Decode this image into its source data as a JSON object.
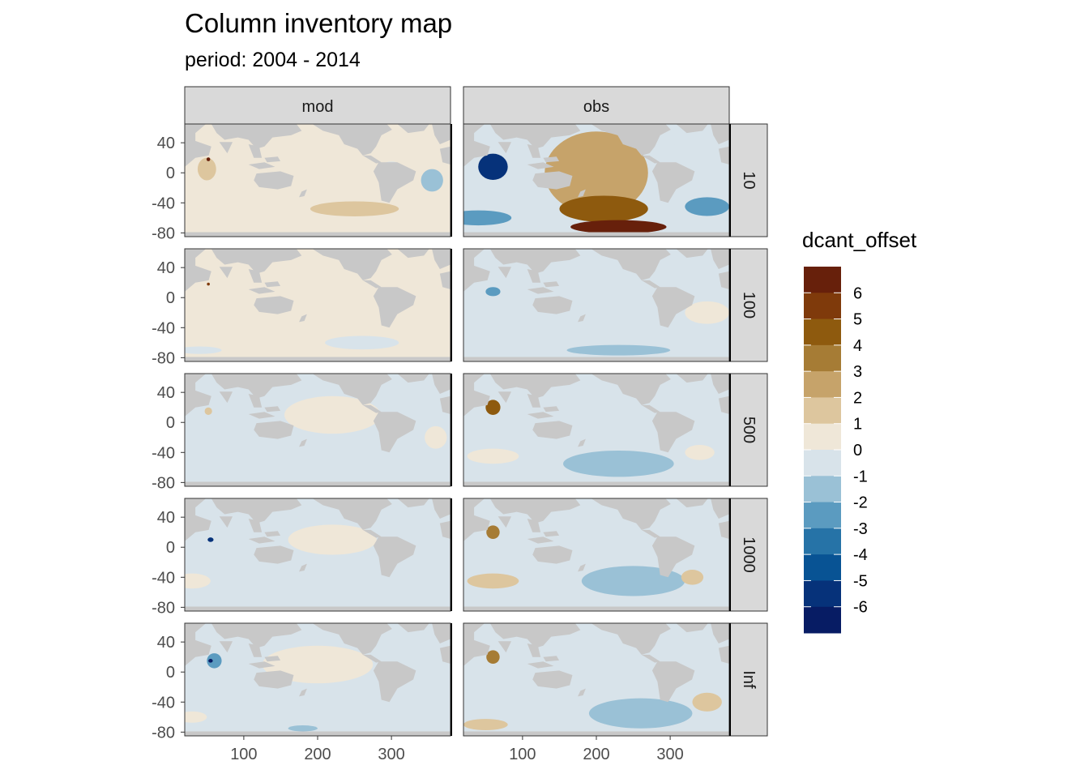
{
  "title": "Column inventory map",
  "subtitle": "period: 2004 - 2014",
  "chart_data": {
    "type": "heatmap",
    "facet_columns": [
      "mod",
      "obs"
    ],
    "facet_rows": [
      "10",
      "100",
      "500",
      "1000",
      "Inf"
    ],
    "x_ticks": [
      "100",
      "200",
      "300"
    ],
    "x_tick_values": [
      100,
      200,
      300
    ],
    "xlim": [
      20,
      380
    ],
    "y_ticks": [
      "40",
      "0",
      "-40",
      "-80"
    ],
    "y_tick_values": [
      40,
      0,
      -40,
      -80
    ],
    "ylim": [
      -85,
      65
    ],
    "legend": {
      "title": "dcant_offset",
      "labels": [
        "6",
        "5",
        "4",
        "3",
        "2",
        "1",
        "0",
        "-1",
        "-2",
        "-3",
        "-4",
        "-5",
        "-6"
      ],
      "colors": [
        "#67200b",
        "#7f3a0b",
        "#8e5a0e",
        "#a67c35",
        "#c6a36a",
        "#ddc69e",
        "#efe7d8",
        "#d8e3ea",
        "#9ac1d6",
        "#5b9bc0",
        "#2673a7",
        "#085394",
        "#06327a",
        "#071c64"
      ]
    },
    "colors": {
      "land": "#c8c8c8",
      "panel_border": "#333333",
      "strip_fill": "#d9d9d9"
    },
    "panels": {
      "mod": {
        "10": {
          "base": 0.3,
          "patches": [
            {
              "lon": 250,
              "lat": -48,
              "w": 120,
              "h": 20,
              "v": 1.4
            },
            {
              "lon": 50,
              "lat": 5,
              "w": 25,
              "h": 30,
              "v": 1.6
            },
            {
              "lon": 355,
              "lat": -10,
              "w": 30,
              "h": 30,
              "v": -1.6
            },
            {
              "lon": 300,
              "lat": 0,
              "w": 40,
              "h": 30,
              "v": -0.4
            },
            {
              "lon": 30,
              "lat": -60,
              "w": 60,
              "h": 15,
              "v": 0.9
            },
            {
              "lon": 52,
              "lat": 18,
              "w": 5,
              "h": 5,
              "v": 6.5
            }
          ]
        },
        "100": {
          "base": 0.4,
          "patches": [
            {
              "lon": 260,
              "lat": -60,
              "w": 100,
              "h": 18,
              "v": -0.5
            },
            {
              "lon": 40,
              "lat": -70,
              "w": 60,
              "h": 10,
              "v": -0.5
            },
            {
              "lon": 52,
              "lat": 18,
              "w": 4,
              "h": 4,
              "v": 5.5
            }
          ]
        },
        "500": {
          "base": -0.4,
          "patches": [
            {
              "lon": 220,
              "lat": 10,
              "w": 130,
              "h": 50,
              "v": 0.5
            },
            {
              "lon": 360,
              "lat": -20,
              "w": 30,
              "h": 30,
              "v": 0.5
            },
            {
              "lon": 52,
              "lat": 15,
              "w": 10,
              "h": 10,
              "v": 1.5
            }
          ]
        },
        "1000": {
          "base": -0.4,
          "patches": [
            {
              "lon": 220,
              "lat": 10,
              "w": 120,
              "h": 40,
              "v": 0.5
            },
            {
              "lon": 30,
              "lat": -45,
              "w": 50,
              "h": 20,
              "v": 0.5
            },
            {
              "lon": 55,
              "lat": 10,
              "w": 8,
              "h": 6,
              "v": -5.5
            },
            {
              "lon": 100,
              "lat": 0,
              "w": 30,
              "h": 30,
              "v": -0.6
            }
          ]
        },
        "Inf": {
          "base": -0.4,
          "patches": [
            {
              "lon": 200,
              "lat": 10,
              "w": 150,
              "h": 50,
              "v": 0.5
            },
            {
              "lon": 60,
              "lat": 15,
              "w": 20,
              "h": 20,
              "v": -2.5
            },
            {
              "lon": 55,
              "lat": 15,
              "w": 6,
              "h": 5,
              "v": -6.5
            },
            {
              "lon": 180,
              "lat": -75,
              "w": 40,
              "h": 8,
              "v": -1.5
            },
            {
              "lon": 30,
              "lat": -60,
              "w": 40,
              "h": 15,
              "v": 0.5
            }
          ]
        }
      },
      "obs": {
        "10": {
          "base": -0.4,
          "patches": [
            {
              "lon": 200,
              "lat": 0,
              "w": 140,
              "h": 110,
              "v": 2.2
            },
            {
              "lon": 210,
              "lat": -48,
              "w": 120,
              "h": 35,
              "v": 4.2
            },
            {
              "lon": 230,
              "lat": -72,
              "w": 130,
              "h": 18,
              "v": 6.2
            },
            {
              "lon": 60,
              "lat": 8,
              "w": 40,
              "h": 35,
              "v": -5.5
            },
            {
              "lon": 350,
              "lat": -45,
              "w": 60,
              "h": 25,
              "v": -2.8
            },
            {
              "lon": 40,
              "lat": -60,
              "w": 90,
              "h": 20,
              "v": -2.2
            },
            {
              "lon": 330,
              "lat": 30,
              "w": 60,
              "h": 25,
              "v": -0.8
            }
          ]
        },
        "100": {
          "base": -0.4,
          "patches": [
            {
              "lon": 230,
              "lat": -70,
              "w": 140,
              "h": 14,
              "v": -1.5
            },
            {
              "lon": 350,
              "lat": -20,
              "w": 60,
              "h": 30,
              "v": 0.5
            },
            {
              "lon": 60,
              "lat": 8,
              "w": 20,
              "h": 12,
              "v": -2.8
            }
          ]
        },
        "500": {
          "base": -0.4,
          "patches": [
            {
              "lon": 230,
              "lat": -55,
              "w": 150,
              "h": 35,
              "v": -1.4
            },
            {
              "lon": 60,
              "lat": 20,
              "w": 20,
              "h": 20,
              "v": 4.5
            },
            {
              "lon": 340,
              "lat": -40,
              "w": 40,
              "h": 20,
              "v": 0.8
            },
            {
              "lon": 60,
              "lat": -45,
              "w": 70,
              "h": 20,
              "v": 0.5
            }
          ]
        },
        "1000": {
          "base": -0.4,
          "patches": [
            {
              "lon": 250,
              "lat": -45,
              "w": 140,
              "h": 40,
              "v": -1.4
            },
            {
              "lon": 60,
              "lat": 20,
              "w": 18,
              "h": 18,
              "v": 4.0
            },
            {
              "lon": 330,
              "lat": -40,
              "w": 30,
              "h": 20,
              "v": 1.5
            },
            {
              "lon": 60,
              "lat": -45,
              "w": 70,
              "h": 20,
              "v": 1.2
            }
          ]
        },
        "Inf": {
          "base": -0.4,
          "patches": [
            {
              "lon": 260,
              "lat": -55,
              "w": 140,
              "h": 40,
              "v": -1.4
            },
            {
              "lon": 60,
              "lat": 20,
              "w": 18,
              "h": 18,
              "v": 3.5
            },
            {
              "lon": 350,
              "lat": -40,
              "w": 40,
              "h": 25,
              "v": 1.5
            },
            {
              "lon": 50,
              "lat": -70,
              "w": 60,
              "h": 15,
              "v": 1.5
            }
          ]
        }
      }
    }
  }
}
